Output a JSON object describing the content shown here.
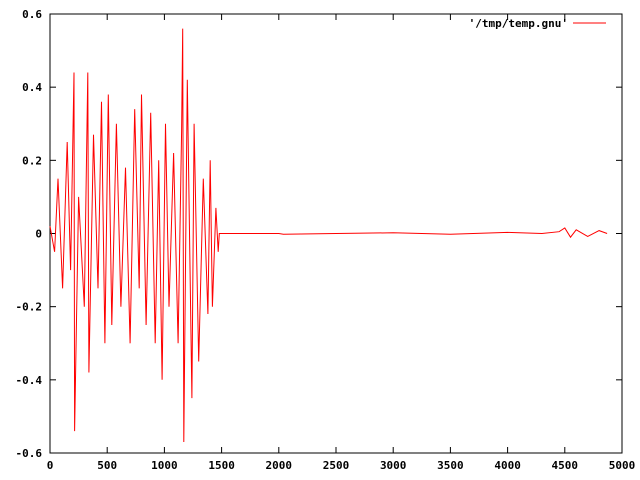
{
  "chart_data": {
    "type": "line",
    "title": "",
    "xlabel": "",
    "ylabel": "",
    "xlim": [
      0,
      5000
    ],
    "ylim": [
      -0.6,
      0.6
    ],
    "x_ticks": [
      0,
      500,
      1000,
      1500,
      2000,
      2500,
      3000,
      3500,
      4000,
      4500,
      5000
    ],
    "y_ticks": [
      -0.6,
      -0.4,
      -0.2,
      0,
      0.2,
      0.4,
      0.6
    ],
    "x_tick_labels": [
      "0",
      "500",
      "1000",
      "1500",
      "2000",
      "2500",
      "3000",
      "3500",
      "4000",
      "4500",
      "5000"
    ],
    "y_tick_labels": [
      "-0.6",
      "-0.4",
      "-0.2",
      "0",
      "0.2",
      "0.4",
      "0.6"
    ],
    "grid": false,
    "legend_position": "top-right",
    "series": [
      {
        "name": "'/tmp/temp.gnu'",
        "color": "#ff0000",
        "x": [
          0,
          40,
          70,
          110,
          150,
          180,
          210,
          215,
          250,
          300,
          330,
          340,
          380,
          420,
          450,
          480,
          510,
          540,
          580,
          620,
          660,
          700,
          740,
          780,
          800,
          840,
          880,
          920,
          950,
          980,
          1010,
          1040,
          1080,
          1120,
          1150,
          1160,
          1170,
          1200,
          1240,
          1260,
          1300,
          1340,
          1380,
          1400,
          1420,
          1450,
          1470,
          1480,
          1500,
          1700,
          2000,
          2040,
          2500,
          3000,
          3500,
          4000,
          4300,
          4450,
          4500,
          4550,
          4600,
          4700,
          4800,
          4870
        ],
        "y": [
          0.02,
          -0.05,
          0.15,
          -0.15,
          0.25,
          -0.1,
          0.44,
          -0.54,
          0.1,
          -0.2,
          0.44,
          -0.38,
          0.27,
          -0.15,
          0.36,
          -0.3,
          0.38,
          -0.25,
          0.3,
          -0.2,
          0.18,
          -0.3,
          0.34,
          -0.15,
          0.38,
          -0.25,
          0.33,
          -0.3,
          0.2,
          -0.4,
          0.3,
          -0.2,
          0.22,
          -0.3,
          0.28,
          0.56,
          -0.57,
          0.42,
          -0.45,
          0.3,
          -0.35,
          0.15,
          -0.22,
          0.2,
          -0.2,
          0.07,
          -0.05,
          0.0,
          0.0,
          0.0,
          0.0,
          -0.002,
          0.0,
          0.002,
          -0.002,
          0.003,
          0.0,
          0.005,
          0.015,
          -0.01,
          0.01,
          -0.008,
          0.008,
          0.0
        ]
      }
    ]
  }
}
